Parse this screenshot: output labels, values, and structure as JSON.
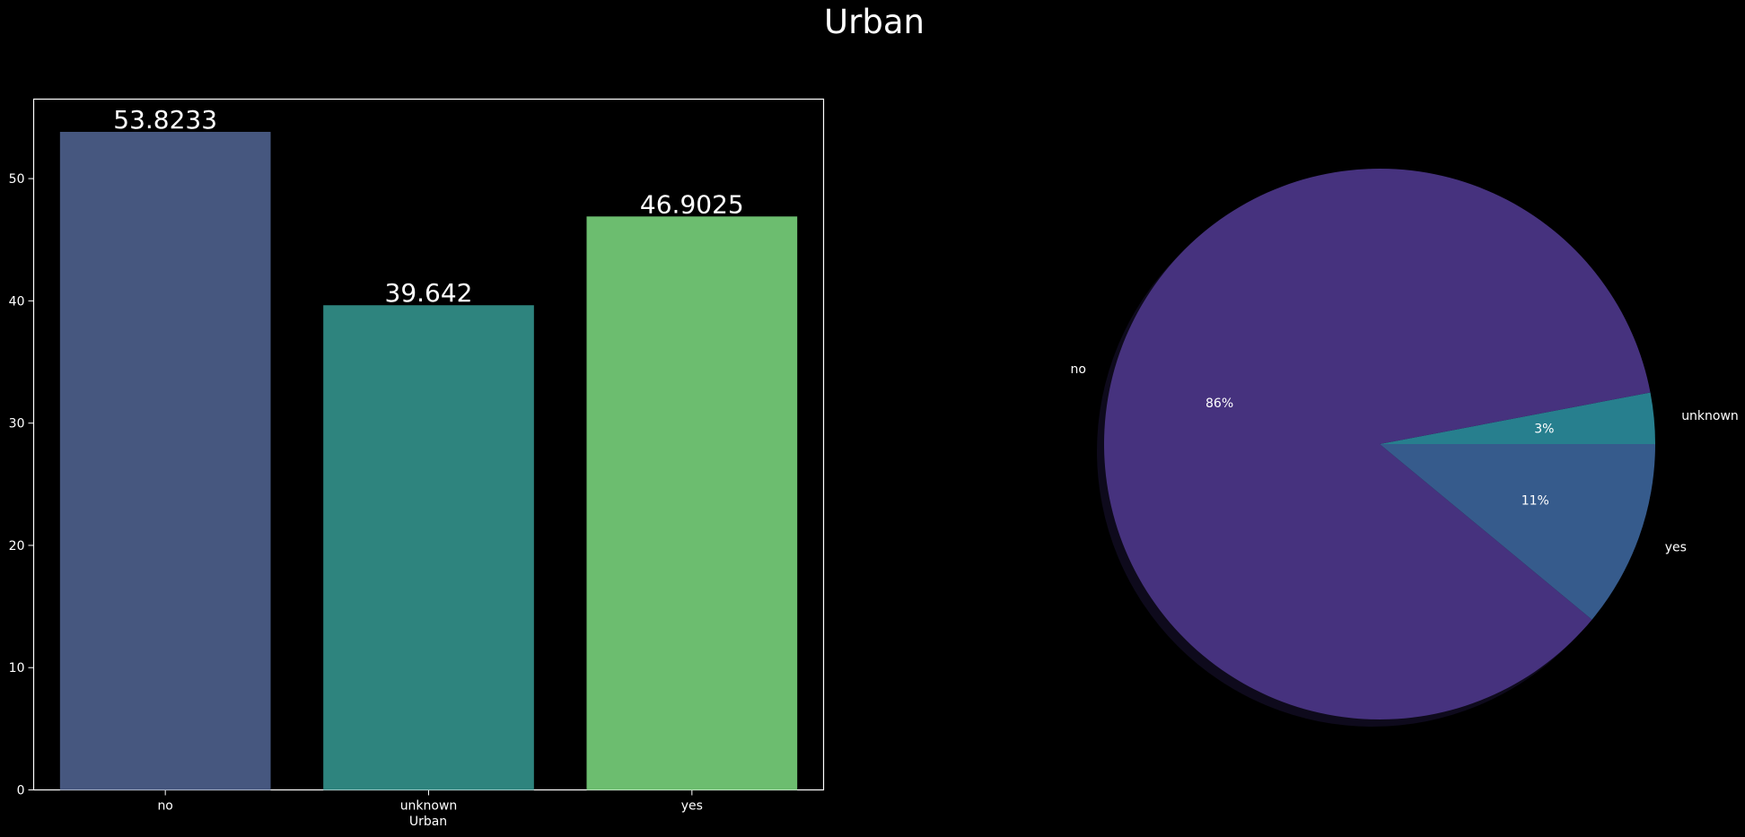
{
  "chart_data": [
    {
      "type": "bar",
      "title": "Urban",
      "xlabel": "Urban",
      "ylabel": "",
      "categories": [
        "no",
        "unknown",
        "yes"
      ],
      "values": [
        53.8233,
        39.642,
        46.9025
      ],
      "data_labels": [
        "53.8233",
        "39.642",
        "46.9025"
      ],
      "colors": [
        "#46577f",
        "#2e847e",
        "#6cbd6f"
      ],
      "ylim": [
        0,
        56.5
      ],
      "yticks": [
        "0",
        "10",
        "20",
        "30",
        "40",
        "50"
      ],
      "grid": false,
      "legend": "none"
    },
    {
      "type": "pie",
      "labels": [
        "no",
        "yes",
        "unknown"
      ],
      "values": [
        86,
        11,
        3
      ],
      "pct_labels": [
        "86%",
        "11%",
        "3%"
      ],
      "colors": [
        "#46327e",
        "#365b8c",
        "#277f8e"
      ],
      "shadow": true,
      "start": "counterclockwise from 0° (3 o'clock), 'unknown' first"
    }
  ],
  "colors": {
    "background": "#000000",
    "text": "#ffffff",
    "axes": "#ffffff"
  }
}
